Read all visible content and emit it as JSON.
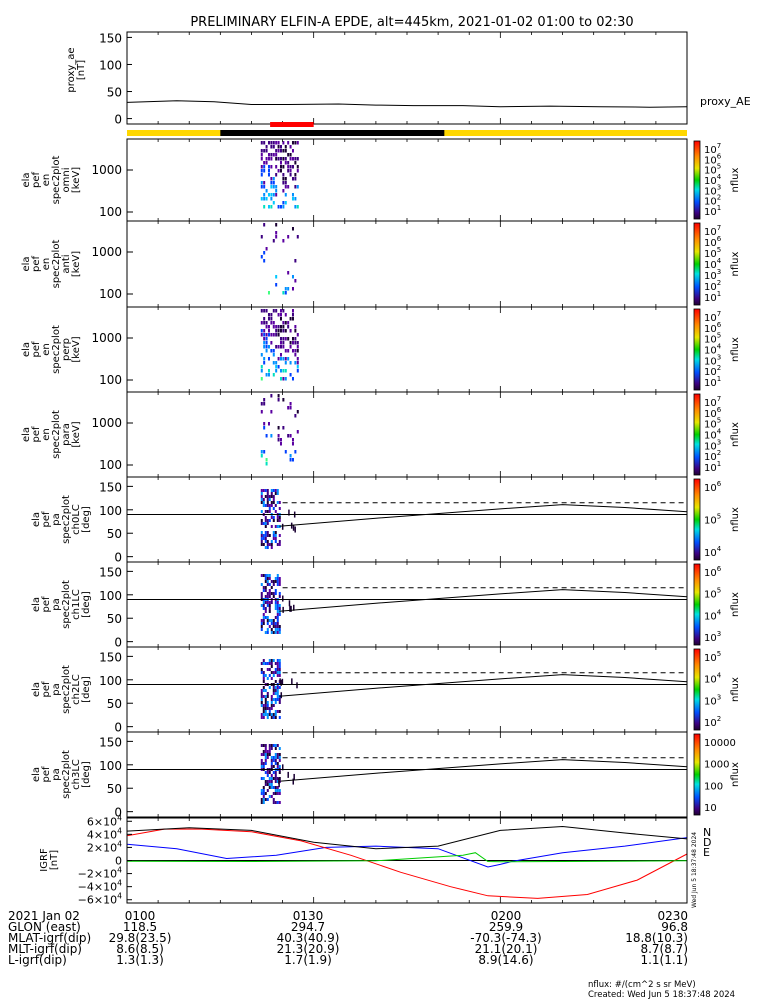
{
  "title": "PRELIMINARY ELFIN-A EPDE, alt=445km, 2021-01-02 01:00 to 02:30",
  "chart_data": [
    {
      "type": "line",
      "ylabel": "proxy_ae\n[nT]",
      "legend": [
        "proxy_AE"
      ],
      "yticks": [
        "150",
        "100",
        "50",
        "0"
      ],
      "ylim": [
        -10,
        160
      ],
      "x_minutes": [
        0,
        8,
        14,
        20,
        26,
        34,
        40,
        46,
        54,
        60,
        68,
        76,
        84,
        90
      ],
      "values": [
        30,
        33,
        31,
        26,
        26,
        27,
        25,
        24,
        24,
        22,
        23,
        22,
        21,
        22
      ]
    },
    {
      "type": "heatmap",
      "ylabel": "ela\npef\nen\nspec2plot\nomni\n[keV]",
      "yticks": [
        "1000",
        "100"
      ],
      "zunit": "nflux",
      "zticks": [
        "10^7",
        "10^6",
        "10^5",
        "10^4",
        "10^3",
        "10^2",
        "10^1"
      ]
    },
    {
      "type": "heatmap",
      "ylabel": "ela\npef\nen\nspec2plot\nanti\n[keV]",
      "yticks": [
        "1000",
        "100"
      ],
      "zunit": "nflux",
      "zticks": [
        "10^7",
        "10^6",
        "10^5",
        "10^4",
        "10^3",
        "10^2",
        "10^1"
      ]
    },
    {
      "type": "heatmap",
      "ylabel": "ela\npef\nen\nspec2plot\nperp\n[keV]",
      "yticks": [
        "1000",
        "100"
      ],
      "zunit": "nflux",
      "zticks": [
        "10^7",
        "10^6",
        "10^5",
        "10^4",
        "10^3",
        "10^2",
        "10^1"
      ]
    },
    {
      "type": "heatmap",
      "ylabel": "ela\npef\nen\nspec2plot\npara\n[keV]",
      "yticks": [
        "1000",
        "100"
      ],
      "zunit": "nflux",
      "zticks": [
        "10^7",
        "10^6",
        "10^5",
        "10^4",
        "10^3",
        "10^2",
        "10^1"
      ]
    },
    {
      "type": "heatmap",
      "ylabel": "ela\npef\npa\nspec2plot\nch0LC\n[deg]",
      "yticks": [
        "150",
        "100",
        "50",
        "0"
      ],
      "zunit": "nflux",
      "zticks": [
        "10^6",
        "10^5",
        "10^4"
      ]
    },
    {
      "type": "heatmap",
      "ylabel": "ela\npef\npa\nspec2plot\nch1LC\n[deg]",
      "yticks": [
        "150",
        "100",
        "50",
        "0"
      ],
      "zunit": "nflux",
      "zticks": [
        "10^6",
        "10^5",
        "10^4",
        "10^3"
      ]
    },
    {
      "type": "heatmap",
      "ylabel": "ela\npef\npa\nspec2plot\nch2LC\n[deg]",
      "yticks": [
        "150",
        "100",
        "50",
        "0"
      ],
      "zunit": "nflux",
      "zticks": [
        "10^5",
        "10^4",
        "10^3",
        "10^2"
      ]
    },
    {
      "type": "heatmap",
      "ylabel": "ela\npef\npa\nspec2plot\nch3LC\n[deg]",
      "yticks": [
        "150",
        "100",
        "50",
        "0"
      ],
      "zunit": "nflux",
      "zticks": [
        "10000",
        "1000",
        "100",
        "10"
      ]
    },
    {
      "type": "line",
      "ylabel": "IGRF\n[nT]",
      "yticks": [
        "6×10^4",
        "4×10^4",
        "2×10^4",
        "0",
        "−2×10^4",
        "−4×10^4",
        "−6×10^4"
      ],
      "ylim": [
        -65000,
        65000
      ],
      "series": [
        {
          "name": "N",
          "color": "#0000ff",
          "x": [
            0,
            8,
            16,
            24,
            32,
            40,
            50,
            58,
            60,
            62,
            70,
            80,
            90
          ],
          "y": [
            25000,
            18000,
            3000,
            8000,
            20000,
            22000,
            18000,
            -10000,
            -6000,
            -1000,
            12000,
            22000,
            35000
          ]
        },
        {
          "name": "D",
          "color": "#ff0000",
          "x": [
            0,
            6,
            12,
            20,
            28,
            36,
            44,
            52,
            58,
            66,
            74,
            82,
            90
          ],
          "y": [
            38000,
            48000,
            48000,
            44000,
            30000,
            8000,
            -18000,
            -40000,
            -54000,
            -58000,
            -52000,
            -30000,
            10000
          ]
        },
        {
          "name": "E",
          "color": "#00cc00",
          "x": [
            0,
            20,
            40,
            54,
            56,
            58,
            60,
            70,
            90
          ],
          "y": [
            -1000,
            -1500,
            -500,
            8000,
            12000,
            -1500,
            -2000,
            -1500,
            -500
          ]
        },
        {
          "name": "",
          "color": "#000000",
          "x": [
            0,
            10,
            20,
            30,
            40,
            50,
            60,
            70,
            80,
            90
          ],
          "y": [
            45000,
            50000,
            46000,
            28000,
            18000,
            22000,
            46000,
            52000,
            42000,
            33000
          ]
        }
      ]
    }
  ],
  "footer": {
    "rows": [
      [
        "2021 Jan 02",
        "0100",
        "0130",
        "0200",
        "0230"
      ],
      [
        "GLON (east)",
        "118.5",
        "294.7",
        "259.9",
        "96.8"
      ],
      [
        "MLAT-igrf(dip)",
        "29.8(23.5)",
        "40.3(40.9)",
        "-70.3(-74.3)",
        "18.8(10.3)"
      ],
      [
        "MLT-igrf(dip)",
        "8.6(8.5)",
        "21.3(20.9)",
        "21.1(20.1)",
        "8.7(8.7)"
      ],
      [
        "L-igrf(dip)",
        "1.3(1.3)",
        "1.7(1.9)",
        "8.9(14.6)",
        "1.1(1.1)"
      ]
    ],
    "units": "nflux: #/(cm^2 s sr MeV)",
    "created": "Created: Wed Jun  5 18:37:48 2024",
    "side_stamp": "Wed Jun  5 18:37:48 2024"
  }
}
